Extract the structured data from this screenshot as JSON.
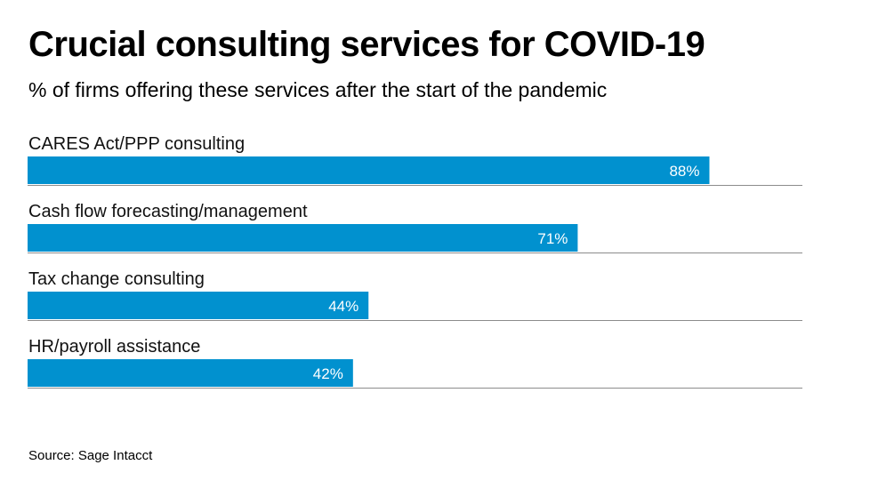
{
  "chart_data": {
    "type": "bar",
    "orientation": "horizontal",
    "title": "Crucial consulting services for COVID-19",
    "subtitle": "% of firms offering these services after the start of the pandemic",
    "categories": [
      "CARES Act/PPP consulting",
      "Cash flow forecasting/management",
      "Tax change consulting",
      "HR/payroll assistance"
    ],
    "values": [
      88,
      71,
      44,
      42
    ],
    "value_labels": [
      "88%",
      "71%",
      "44%",
      "42%"
    ],
    "xlim": [
      0,
      100
    ],
    "xlabel": "",
    "ylabel": "",
    "grid": false,
    "bar_color": "#0191CF",
    "source": "Source: Sage Intacct"
  }
}
